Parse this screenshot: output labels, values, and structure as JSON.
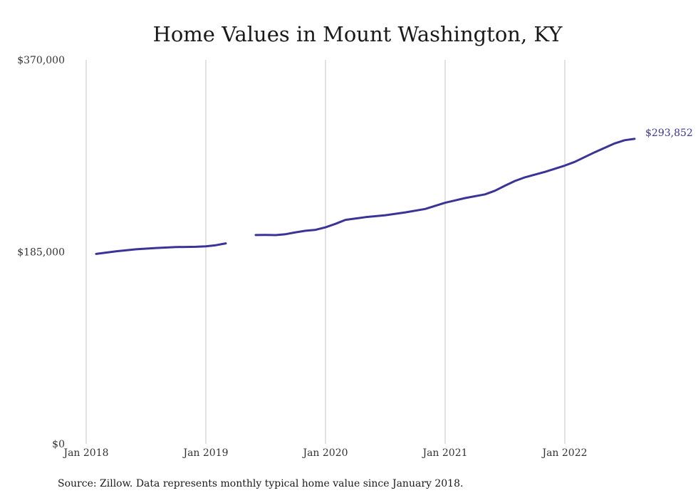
{
  "chart_data": {
    "type": "line",
    "title": "Home Values in Mount Washington, KY",
    "xlabel": "",
    "ylabel": "",
    "ylim": [
      0,
      370000
    ],
    "xlim": [
      "2018-01",
      "2022-08"
    ],
    "y_tick_labels": [
      {
        "value": 0,
        "label": "$0"
      },
      {
        "value": 185000,
        "label": "$185,000"
      },
      {
        "value": 370000,
        "label": "$370,000"
      }
    ],
    "x_tick_labels": [
      {
        "date": "2018-01",
        "label": "Jan 2018"
      },
      {
        "date": "2019-01",
        "label": "Jan 2019"
      },
      {
        "date": "2020-01",
        "label": "Jan 2020"
      },
      {
        "date": "2021-01",
        "label": "Jan 2021"
      },
      {
        "date": "2022-01",
        "label": "Jan 2022"
      }
    ],
    "grid": "vertical",
    "line_color": "#3b3497",
    "series": [
      {
        "segments": [
          [
            {
              "date": "2018-02",
              "value": 183000
            },
            {
              "date": "2018-04",
              "value": 185500
            },
            {
              "date": "2018-06",
              "value": 187500
            },
            {
              "date": "2018-08",
              "value": 188700
            },
            {
              "date": "2018-10",
              "value": 189600
            },
            {
              "date": "2018-12",
              "value": 189900
            },
            {
              "date": "2019-01",
              "value": 190300
            },
            {
              "date": "2019-02",
              "value": 191400
            },
            {
              "date": "2019-03",
              "value": 193200
            }
          ],
          [
            {
              "date": "2019-06",
              "value": 201200
            },
            {
              "date": "2019-07",
              "value": 201300
            },
            {
              "date": "2019-08",
              "value": 201100
            },
            {
              "date": "2019-09",
              "value": 202000
            },
            {
              "date": "2019-10",
              "value": 203800
            },
            {
              "date": "2019-11",
              "value": 205300
            },
            {
              "date": "2019-12",
              "value": 206200
            },
            {
              "date": "2020-01",
              "value": 208600
            },
            {
              "date": "2020-02",
              "value": 212000
            },
            {
              "date": "2020-03",
              "value": 215800
            },
            {
              "date": "2020-05",
              "value": 218400
            },
            {
              "date": "2020-07",
              "value": 220300
            },
            {
              "date": "2020-09",
              "value": 223000
            },
            {
              "date": "2020-11",
              "value": 226300
            },
            {
              "date": "2021-01",
              "value": 232300
            },
            {
              "date": "2021-03",
              "value": 236800
            },
            {
              "date": "2021-05",
              "value": 240400
            },
            {
              "date": "2021-06",
              "value": 243900
            },
            {
              "date": "2021-07",
              "value": 248800
            },
            {
              "date": "2021-08",
              "value": 253300
            },
            {
              "date": "2021-09",
              "value": 256800
            },
            {
              "date": "2021-11",
              "value": 262000
            },
            {
              "date": "2022-01",
              "value": 268100
            },
            {
              "date": "2022-02",
              "value": 271700
            },
            {
              "date": "2022-04",
              "value": 281000
            },
            {
              "date": "2022-06",
              "value": 289500
            },
            {
              "date": "2022-07",
              "value": 292600
            },
            {
              "date": "2022-08",
              "value": 293852
            }
          ]
        ]
      }
    ],
    "end_label": "$293,852"
  },
  "footer": {
    "source": "Source: Zillow. Data represents monthly typical home value since January 2018."
  }
}
